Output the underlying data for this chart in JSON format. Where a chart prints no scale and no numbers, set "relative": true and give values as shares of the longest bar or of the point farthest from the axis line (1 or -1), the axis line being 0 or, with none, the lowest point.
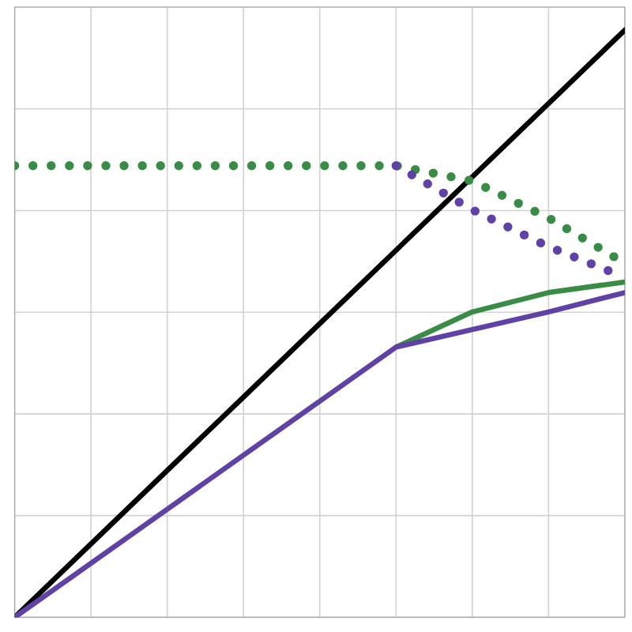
{
  "chart_data": {
    "type": "line",
    "relative": true,
    "grid": true,
    "categories": [
      null,
      null,
      null,
      null,
      null,
      null,
      null,
      null,
      null
    ],
    "series": [
      {
        "color": "#000000",
        "values": [
          0,
          0.125,
          0.25,
          0.375,
          0.5,
          0.625,
          0.75,
          0.875,
          1.0
        ]
      },
      {
        "color": "#388c46",
        "line_style": "dotted",
        "values": [
          0.769,
          0.769,
          0.769,
          0.769,
          0.769,
          0.769,
          0.743,
          0.68,
          0.603
        ]
      },
      {
        "color": "#6042a6",
        "line_style": "dotted",
        "values": [
          null,
          null,
          null,
          null,
          null,
          0.769,
          0.694,
          0.631,
          0.579
        ]
      },
      {
        "color": "#388c46",
        "values": [
          null,
          null,
          null,
          null,
          null,
          0.46,
          0.52,
          0.553,
          0.571
        ]
      },
      {
        "color": "#6042a6",
        "values": [
          0,
          0.092,
          0.184,
          0.276,
          0.368,
          0.46,
          0.49,
          0.52,
          0.553
        ]
      }
    ]
  }
}
